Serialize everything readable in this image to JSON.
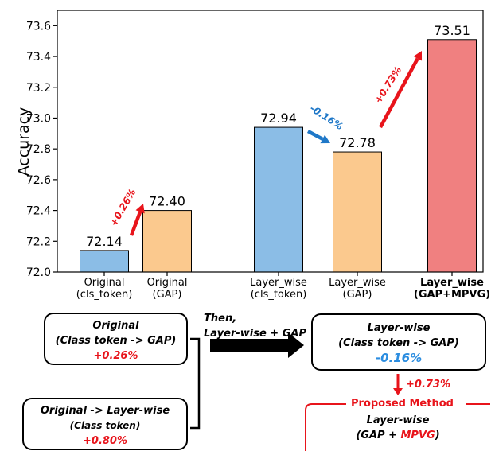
{
  "chart_data": {
    "type": "bar",
    "ylabel": "Accuracy",
    "ylim": [
      72.0,
      73.7
    ],
    "yticks": [
      "72.0",
      "72.2",
      "72.4",
      "72.6",
      "72.8",
      "73.0",
      "73.2",
      "73.4",
      "73.6"
    ],
    "grid": false,
    "bars": [
      {
        "label": [
          "Original",
          "(cls_token)"
        ],
        "value": 72.14,
        "value_label": "72.14",
        "color": "#8bbde6",
        "bold": false
      },
      {
        "label": [
          "Original",
          "(GAP)"
        ],
        "value": 72.4,
        "value_label": "72.40",
        "color": "#fbc98e",
        "bold": false
      },
      {
        "label": [
          "Layer_wise",
          "(cls_token)"
        ],
        "value": 72.94,
        "value_label": "72.94",
        "color": "#8bbde6",
        "bold": false
      },
      {
        "label": [
          "Layer_wise",
          "(GAP)"
        ],
        "value": 72.78,
        "value_label": "72.78",
        "color": "#fbc98e",
        "bold": false
      },
      {
        "label": [
          "Layer_wise",
          "(GAP+MPVG)"
        ],
        "value": 73.51,
        "value_label": "73.51",
        "color": "#f08080",
        "bold": true
      }
    ],
    "annotations": [
      {
        "text": "+0.26%",
        "color": "#e8141b"
      },
      {
        "text": "-0.16%",
        "color": "#1f78c8"
      },
      {
        "text": "+0.73%",
        "color": "#e8141b"
      }
    ]
  },
  "diagram": {
    "box1": {
      "title": "Original",
      "subtitle": "(Class token -> GAP)",
      "delta": "+0.26%"
    },
    "box2": {
      "title": "Original -> Layer-wise",
      "subtitle": "(Class token)",
      "delta": "+0.80%"
    },
    "then_text": {
      "line1": "Then,",
      "line2": "Layer-wise + GAP ?"
    },
    "box3": {
      "title": "Layer-wise",
      "subtitle": "(Class token -> GAP)",
      "delta": "-0.16%"
    },
    "arrow_delta": "+0.73%",
    "proposed": {
      "header": "Proposed Method",
      "title": "Layer-wise",
      "sub_prefix": "(GAP + ",
      "sub_highlight": "MPVG",
      "sub_suffix": ")"
    }
  },
  "colors": {
    "red": "#e8141b",
    "blue": "#2b8de0",
    "arrow_blue": "#1f78c8"
  }
}
